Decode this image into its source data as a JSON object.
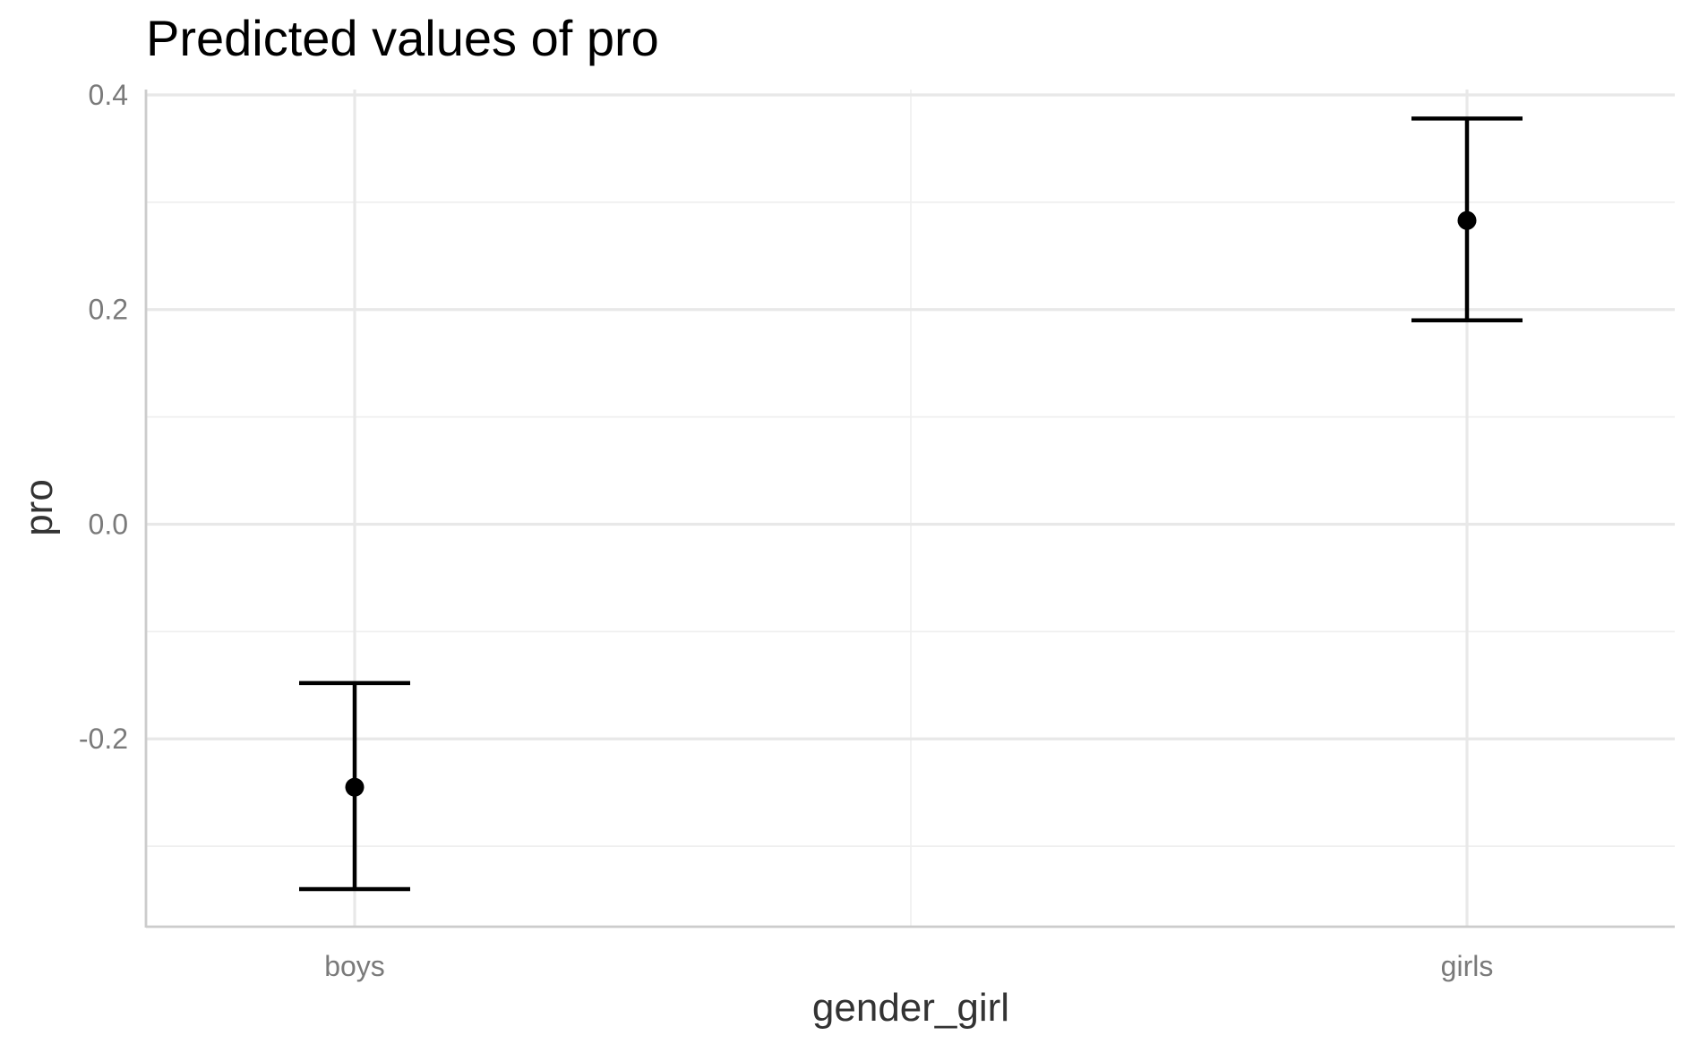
{
  "chart_data": {
    "type": "scatter",
    "title": "Predicted values of pro",
    "xlabel": "gender_girl",
    "ylabel": "pro",
    "categories": [
      "boys",
      "girls"
    ],
    "values": [
      -0.245,
      0.283
    ],
    "ci_low": [
      -0.34,
      0.19
    ],
    "ci_high": [
      -0.148,
      0.378
    ],
    "ylim": [
      -0.375,
      0.405
    ],
    "yticks": [
      -0.2,
      0.0,
      0.2,
      0.4
    ],
    "ytick_labels": [
      "-0.2",
      "0.0",
      "0.2",
      "0.4"
    ],
    "grid": true,
    "legend": "none",
    "colors": {
      "points": "#000000",
      "grid": "#e8e8e8",
      "tick_text": "#7a7a7a",
      "axis_title": "#333333"
    }
  }
}
